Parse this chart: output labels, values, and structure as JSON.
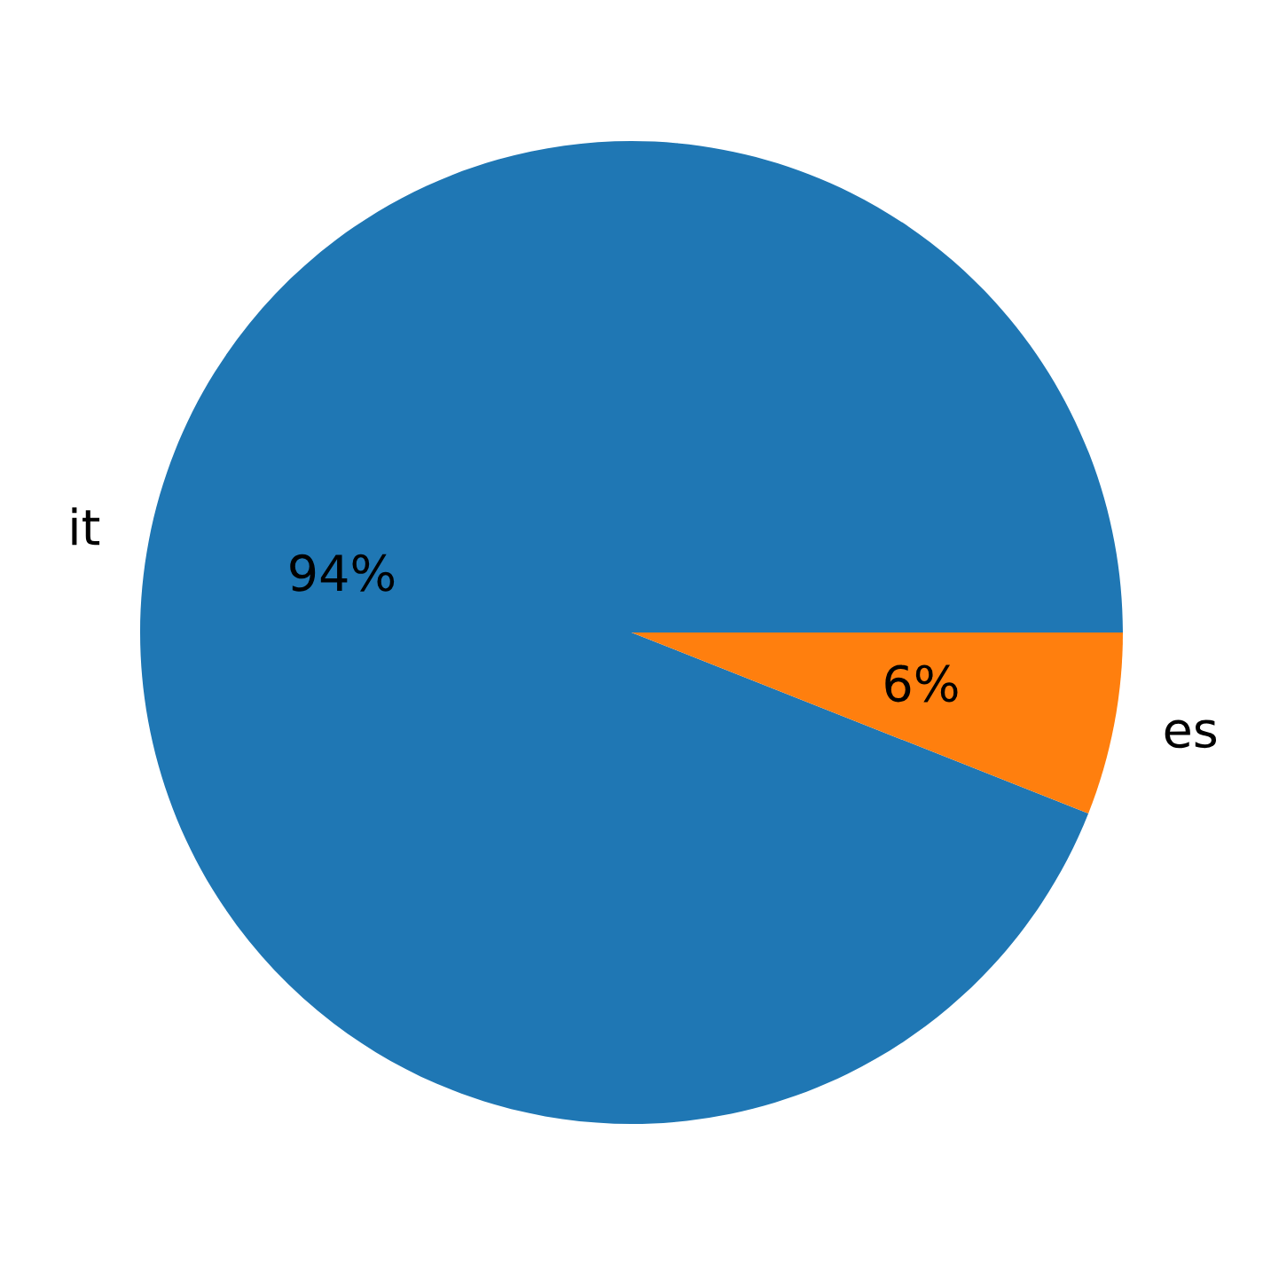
{
  "chart_data": {
    "type": "pie",
    "categories": [
      "it",
      "es"
    ],
    "values": [
      94,
      6
    ],
    "colors": [
      "#1f77b4",
      "#ff7f0e"
    ],
    "value_labels": [
      "94%",
      "6%"
    ]
  }
}
